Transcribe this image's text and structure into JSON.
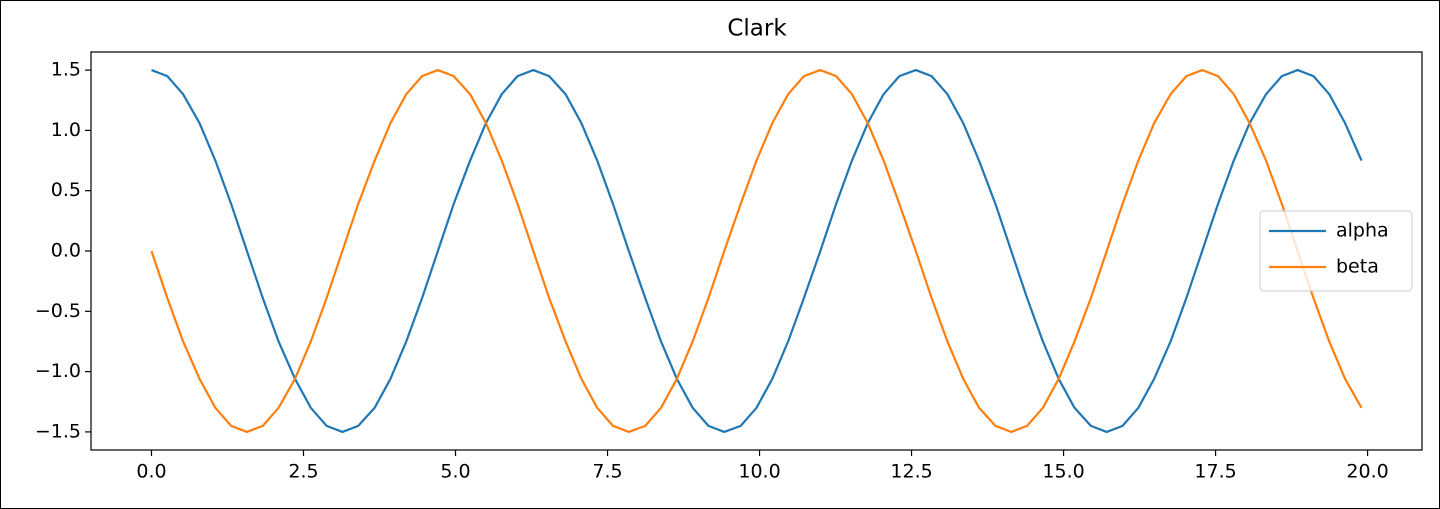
{
  "chart_data": {
    "type": "line",
    "title": "Clark",
    "x": [
      0,
      0.26,
      0.52,
      0.79,
      1.05,
      1.31,
      1.57,
      1.83,
      2.09,
      2.36,
      2.62,
      2.88,
      3.14,
      3.4,
      3.67,
      3.93,
      4.19,
      4.45,
      4.71,
      4.97,
      5.24,
      5.5,
      5.76,
      6.02,
      6.28,
      6.54,
      6.81,
      7.07,
      7.33,
      7.59,
      7.85,
      8.12,
      8.38,
      8.64,
      8.9,
      9.16,
      9.42,
      9.69,
      9.95,
      10.21,
      10.47,
      10.73,
      11.0,
      11.26,
      11.52,
      11.78,
      12.04,
      12.3,
      12.57,
      12.83,
      13.09,
      13.35,
      13.61,
      13.88,
      14.14,
      14.4,
      14.66,
      14.92,
      15.18,
      15.45,
      15.71,
      15.97,
      16.23,
      16.49,
      16.76,
      17.02,
      17.28,
      17.54,
      17.8,
      18.06,
      18.33,
      18.59,
      18.85,
      19.11,
      19.37,
      19.63,
      19.9
    ],
    "series": [
      {
        "name": "alpha",
        "color": "#1f77b4",
        "values": [
          1.5,
          1.45,
          1.3,
          1.06,
          0.75,
          0.39,
          0,
          -0.39,
          -0.75,
          -1.06,
          -1.3,
          -1.45,
          -1.5,
          -1.45,
          -1.3,
          -1.06,
          -0.75,
          -0.39,
          0,
          0.39,
          0.75,
          1.06,
          1.3,
          1.45,
          1.5,
          1.45,
          1.3,
          1.06,
          0.75,
          0.39,
          0,
          -0.39,
          -0.75,
          -1.06,
          -1.3,
          -1.45,
          -1.5,
          -1.45,
          -1.3,
          -1.06,
          -0.75,
          -0.39,
          0,
          0.39,
          0.75,
          1.06,
          1.3,
          1.45,
          1.5,
          1.45,
          1.3,
          1.06,
          0.75,
          0.39,
          0,
          -0.39,
          -0.75,
          -1.06,
          -1.3,
          -1.45,
          -1.5,
          -1.45,
          -1.3,
          -1.06,
          -0.75,
          -0.39,
          0,
          0.39,
          0.75,
          1.06,
          1.3,
          1.45,
          1.5,
          1.45,
          1.3,
          1.06,
          0.75
        ]
      },
      {
        "name": "beta",
        "color": "#ff7f0e",
        "values": [
          0,
          -0.39,
          -0.75,
          -1.06,
          -1.3,
          -1.45,
          -1.5,
          -1.45,
          -1.3,
          -1.06,
          -0.75,
          -0.39,
          0,
          0.39,
          0.75,
          1.06,
          1.3,
          1.45,
          1.5,
          1.45,
          1.3,
          1.06,
          0.75,
          0.39,
          0,
          -0.39,
          -0.75,
          -1.06,
          -1.3,
          -1.45,
          -1.5,
          -1.45,
          -1.3,
          -1.06,
          -0.75,
          -0.39,
          0,
          0.39,
          0.75,
          1.06,
          1.3,
          1.45,
          1.5,
          1.45,
          1.3,
          1.06,
          0.75,
          0.39,
          0,
          -0.39,
          -0.75,
          -1.06,
          -1.3,
          -1.45,
          -1.5,
          -1.45,
          -1.3,
          -1.06,
          -0.75,
          -0.39,
          0,
          0.39,
          0.75,
          1.06,
          1.3,
          1.45,
          1.5,
          1.45,
          1.3,
          1.06,
          0.75,
          0.39,
          0,
          -0.39,
          -0.75,
          -1.06,
          -1.3
        ]
      }
    ],
    "xlim": [
      -0.995,
      20.895
    ],
    "ylim": [
      -1.65,
      1.65
    ],
    "xticks": [
      {
        "value": 0,
        "label": "0.0"
      },
      {
        "value": 2.5,
        "label": "2.5"
      },
      {
        "value": 5,
        "label": "5.0"
      },
      {
        "value": 7.5,
        "label": "7.5"
      },
      {
        "value": 10,
        "label": "10.0"
      },
      {
        "value": 12.5,
        "label": "12.5"
      },
      {
        "value": 15,
        "label": "15.0"
      },
      {
        "value": 17.5,
        "label": "17.5"
      },
      {
        "value": 20,
        "label": "20.0"
      }
    ],
    "yticks": [
      {
        "value": -1.5,
        "label": "−1.5"
      },
      {
        "value": -1,
        "label": "−1.0"
      },
      {
        "value": -0.5,
        "label": "−0.5"
      },
      {
        "value": 0,
        "label": "0.0"
      },
      0.5,
      {
        "value": 1,
        "label": "1.0"
      },
      1.5
    ],
    "grid": false,
    "legend": "center right"
  }
}
